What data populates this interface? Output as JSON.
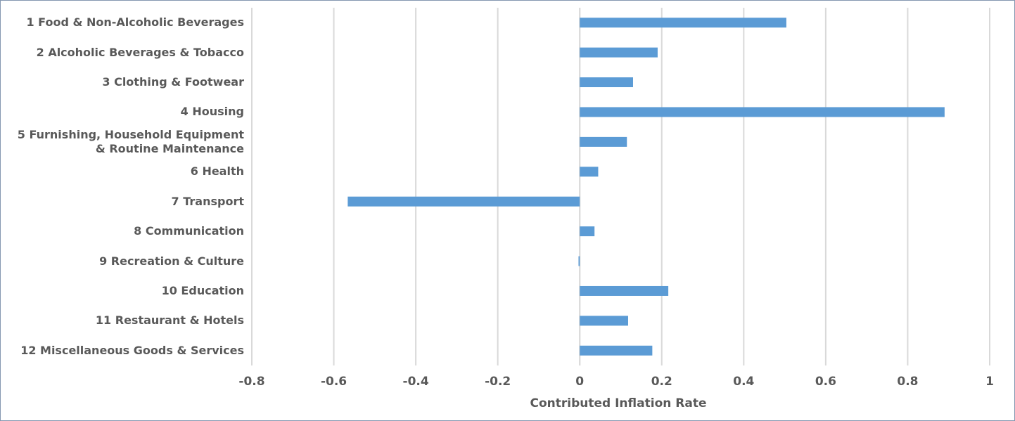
{
  "chart_data": {
    "type": "barh",
    "x_label": "Contributed Inflation Rate",
    "categories": [
      "1 Food & Non-Alcoholic Beverages",
      "2 Alcoholic Beverages & Tobacco",
      "3 Clothing & Footwear",
      "4 Housing",
      "5 Furnishing, Household Equipment & Routine Maintenance",
      "6 Health",
      "7 Transport",
      "8 Communication",
      "9 Recreation & Culture",
      "10 Education",
      "11 Restaurant & Hotels",
      "12 Miscellaneous Goods & Services"
    ],
    "values": [
      0.504,
      0.19,
      0.13,
      0.89,
      0.115,
      0.045,
      -0.566,
      0.036,
      -0.003,
      0.216,
      0.118,
      0.177
    ],
    "color": "#5b9bd5",
    "xlim": [
      -0.8,
      1
    ],
    "xticks": [
      -0.8,
      -0.6,
      -0.4,
      -0.2,
      0,
      0.2,
      0.4,
      0.6,
      0.8,
      1
    ],
    "grid": true
  }
}
